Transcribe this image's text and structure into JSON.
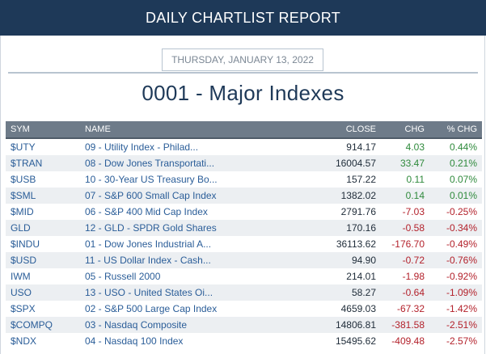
{
  "header": {
    "title": "DAILY CHARTLIST REPORT"
  },
  "date": "THURSDAY, JANUARY 13, 2022",
  "list_title": "0001 - Major Indexes",
  "columns": {
    "sym": "SYM",
    "name": "NAME",
    "close": "CLOSE",
    "chg": "CHG",
    "pct": "% CHG"
  },
  "colors": {
    "header_bg": "#1e3958",
    "positive": "#2f8a3c",
    "negative": "#b3212b",
    "link": "#2a5d98"
  },
  "rows": [
    {
      "sym": "$UTY",
      "name": "09 - Utility Index - Philad...",
      "close": "914.17",
      "chg": "4.03",
      "pct": "0.44%"
    },
    {
      "sym": "$TRAN",
      "name": "08 - Dow Jones Transportati...",
      "close": "16004.57",
      "chg": "33.47",
      "pct": "0.21%"
    },
    {
      "sym": "$USB",
      "name": "10 - 30-Year US Treasury Bo...",
      "close": "157.22",
      "chg": "0.11",
      "pct": "0.07%"
    },
    {
      "sym": "$SML",
      "name": "07 - S&P 600 Small Cap Index",
      "close": "1382.02",
      "chg": "0.14",
      "pct": "0.01%"
    },
    {
      "sym": "$MID",
      "name": "06 - S&P 400 Mid Cap Index",
      "close": "2791.76",
      "chg": "-7.03",
      "pct": "-0.25%"
    },
    {
      "sym": "GLD",
      "name": "12 - GLD - SPDR Gold Shares",
      "close": "170.16",
      "chg": "-0.58",
      "pct": "-0.34%"
    },
    {
      "sym": "$INDU",
      "name": "01 - Dow Jones Industrial A...",
      "close": "36113.62",
      "chg": "-176.70",
      "pct": "-0.49%"
    },
    {
      "sym": "$USD",
      "name": "11 - US Dollar Index - Cash...",
      "close": "94.90",
      "chg": "-0.72",
      "pct": "-0.76%"
    },
    {
      "sym": "IWM",
      "name": "05 - Russell 2000",
      "close": "214.01",
      "chg": "-1.98",
      "pct": "-0.92%"
    },
    {
      "sym": "USO",
      "name": "13 - USO - United States Oi...",
      "close": "58.27",
      "chg": "-0.64",
      "pct": "-1.09%"
    },
    {
      "sym": "$SPX",
      "name": "02 - S&P 500 Large Cap Index",
      "close": "4659.03",
      "chg": "-67.32",
      "pct": "-1.42%"
    },
    {
      "sym": "$COMPQ",
      "name": "03 - Nasdaq Composite",
      "close": "14806.81",
      "chg": "-381.58",
      "pct": "-2.51%"
    },
    {
      "sym": "$NDX",
      "name": "04 - Nasdaq 100 Index",
      "close": "15495.62",
      "chg": "-409.48",
      "pct": "-2.57%"
    }
  ]
}
